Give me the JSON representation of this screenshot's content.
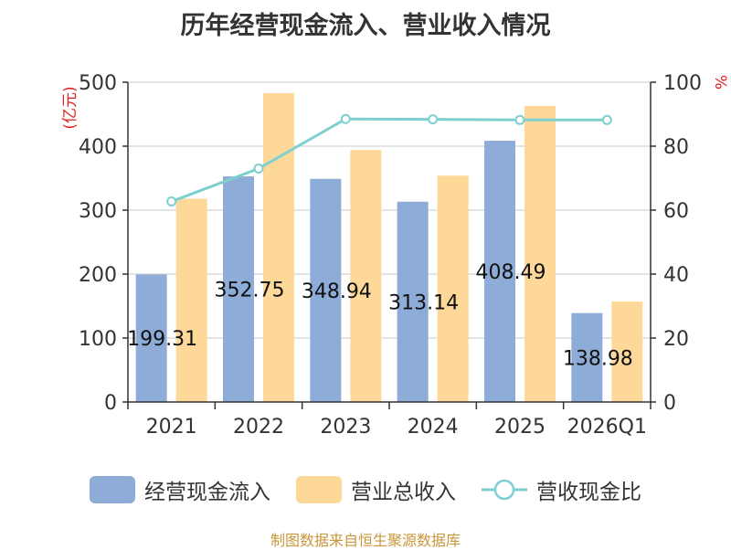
{
  "title": "历年经营现金流入、营业收入情况",
  "source": "制图数据来自恒生聚源数据库",
  "colors": {
    "cash": "#8eacd8",
    "revenue": "#fdd898",
    "ratio": "#7ed0d0",
    "axis_unit": "#e02020"
  },
  "chart_data": {
    "type": "bar",
    "categories": [
      "2021",
      "2022",
      "2023",
      "2024",
      "2025",
      "2026Q1"
    ],
    "y_left": {
      "label": "(亿元)",
      "ylim": [
        0,
        500
      ],
      "ticks": [
        0,
        100,
        200,
        300,
        400,
        500
      ]
    },
    "y_right": {
      "label": "%",
      "ylim": [
        0,
        100
      ],
      "ticks": [
        0,
        20,
        40,
        60,
        80,
        100
      ]
    },
    "series": [
      {
        "name": "经营现金流入",
        "type": "bar",
        "axis": "left",
        "values": [
          199.31,
          352.75,
          348.94,
          313.14,
          408.49,
          138.98
        ],
        "labels": [
          "199.31",
          "352.75",
          "348.94",
          "313.14",
          "408.49",
          "138.98"
        ]
      },
      {
        "name": "营业总收入",
        "type": "bar",
        "axis": "left",
        "values": [
          318,
          483,
          394,
          354,
          463,
          157
        ]
      },
      {
        "name": "营收现金比",
        "type": "line",
        "axis": "right",
        "values": [
          62.7,
          73.0,
          88.5,
          88.4,
          88.2,
          88.2
        ]
      }
    ],
    "grid": true,
    "legend": "bottom"
  }
}
